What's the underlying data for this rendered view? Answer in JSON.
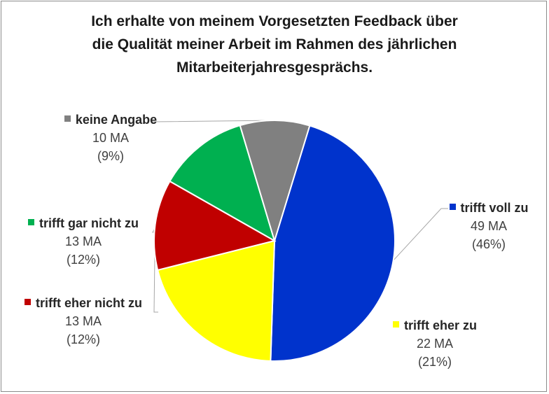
{
  "chart_data": {
    "type": "pie",
    "title_lines": [
      "Ich erhalte von meinem Vorgesetzten Feedback über",
      "die Qualität meiner Arbeit im Rahmen des jährlichen",
      "Mitarbeiterjahresgesprächs."
    ],
    "slices": [
      {
        "label": "trifft voll zu",
        "value": 49,
        "count_text": "49 MA",
        "percent_text": "(46%)",
        "color": "#0033cc"
      },
      {
        "label": "trifft eher zu",
        "value": 22,
        "count_text": "22 MA",
        "percent_text": "(21%)",
        "color": "#ffff00"
      },
      {
        "label": "trifft eher nicht zu",
        "value": 13,
        "count_text": "13 MA",
        "percent_text": "(12%)",
        "color": "#c00000"
      },
      {
        "label": "trifft gar nicht zu",
        "value": 13,
        "count_text": "13 MA",
        "percent_text": "(12%)",
        "color": "#00b050"
      },
      {
        "label": "keine Angabe",
        "value": 10,
        "count_text": "10 MA",
        "percent_text": "(9%)",
        "color": "#808080"
      }
    ]
  }
}
